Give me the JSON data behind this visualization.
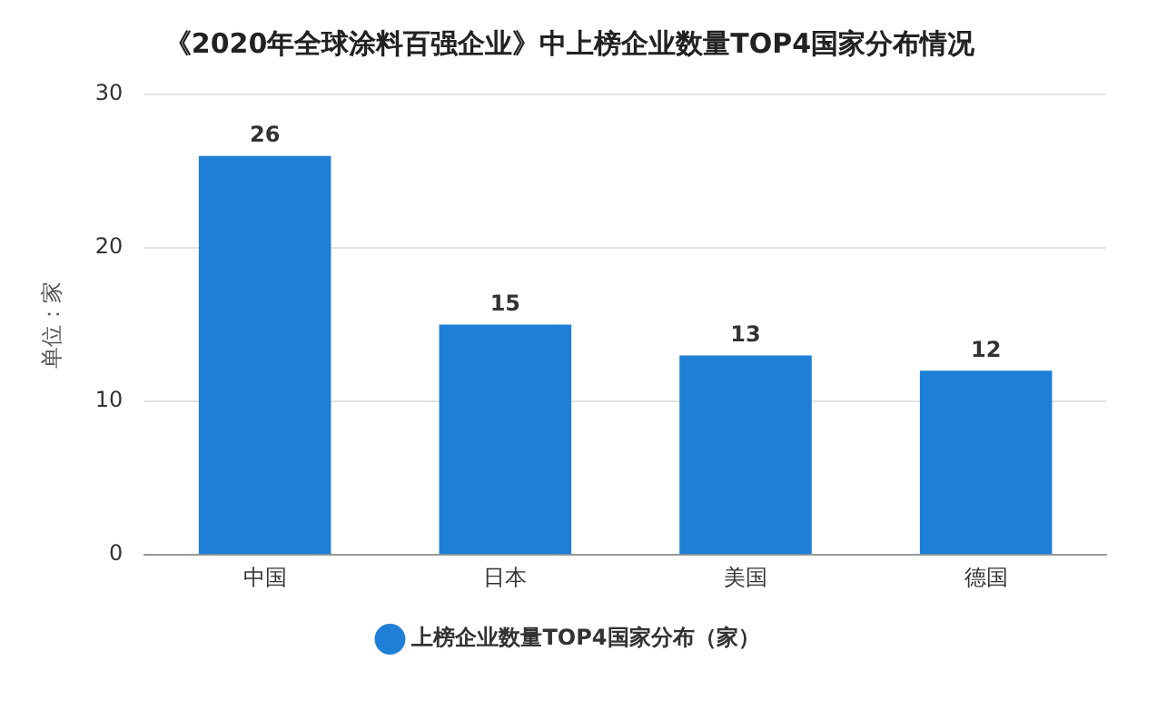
{
  "chart_data": {
    "type": "bar",
    "title": "《2020年全球涂料百强企业》中上榜企业数量TOP4国家分布情况",
    "ylabel": "单位：家",
    "categories": [
      "中国",
      "日本",
      "美国",
      "德国"
    ],
    "series": [
      {
        "name": "上榜企业数量TOP4国家分布（家）",
        "color": "#1f7fd6",
        "values": [
          26,
          15,
          13,
          12
        ]
      }
    ],
    "ylim": [
      0,
      30
    ],
    "yticks": [
      0,
      10,
      20,
      30
    ],
    "grid": "y",
    "legend": "bottom",
    "data_labels": true
  }
}
